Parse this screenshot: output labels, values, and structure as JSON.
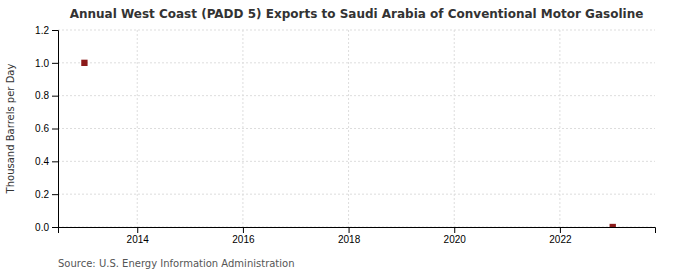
{
  "chart_data": {
    "type": "scatter",
    "title": "Annual West Coast (PADD 5) Exports to Saudi Arabia of Conventional Motor Gasoline",
    "ylabel": "Thousand Barrels per Day",
    "source": "Source: U.S. Energy Information Administration",
    "x": [
      2013,
      2023
    ],
    "values": [
      1.0,
      0.0
    ],
    "color": "#8b1a1a",
    "marker": "square",
    "xlim": [
      2012.5,
      2023.8
    ],
    "ylim": [
      0.0,
      1.2
    ],
    "xticks": [
      2014,
      2016,
      2018,
      2020,
      2022
    ],
    "yticks": [
      {
        "value": 0,
        "label": "0.0"
      },
      0.2,
      0.4,
      0.6,
      0.8,
      {
        "value": 1,
        "label": "1.0"
      },
      1.2
    ],
    "grid": true
  }
}
